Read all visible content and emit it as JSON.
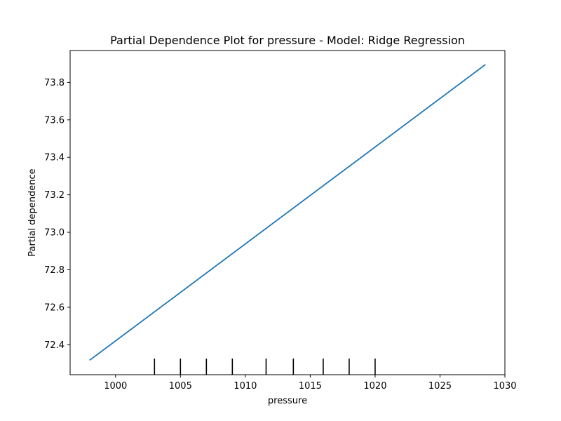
{
  "chart_data": {
    "type": "line",
    "title": "Partial Dependence Plot for pressure - Model: Ridge Regression",
    "xlabel": "pressure",
    "ylabel": "Partial dependence",
    "xlim": [
      996.5,
      1030
    ],
    "ylim": [
      72.24,
      73.97
    ],
    "xticks": [
      1000,
      1005,
      1010,
      1015,
      1020,
      1025,
      1030
    ],
    "yticks": [
      72.4,
      72.6,
      72.8,
      73.0,
      73.2,
      73.4,
      73.6,
      73.8
    ],
    "ytick_labels": [
      "72.4",
      "72.6",
      "72.8",
      "73.0",
      "73.2",
      "73.4",
      "73.6",
      "73.8"
    ],
    "grid": false,
    "series": [
      {
        "name": "",
        "color": "#1f77b4",
        "x": [
          998.0,
          1028.5
        ],
        "y": [
          72.317,
          73.895
        ]
      }
    ],
    "rug": {
      "color": "#000000",
      "x": [
        1003,
        1005,
        1007,
        1009,
        1011.6,
        1013.7,
        1016,
        1018,
        1020
      ]
    }
  }
}
